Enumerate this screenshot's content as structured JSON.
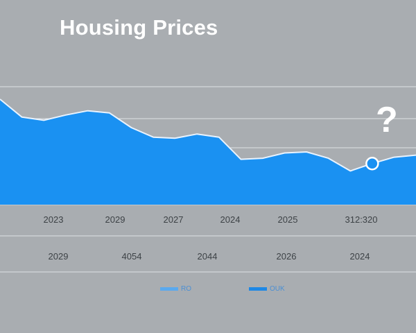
{
  "chart_data": {
    "type": "area",
    "title": "Housing Prices",
    "annotation": "?",
    "x_tick_labels": [
      "2023",
      "2029",
      "2027",
      "2024",
      "2025",
      "312:320"
    ],
    "secondary_x_labels": [
      "2029",
      "4054",
      "2044",
      "2026",
      "2024"
    ],
    "series": [
      {
        "name": "RO",
        "color": "#5aa9ee",
        "values": [
          100,
          83,
          80,
          85,
          89,
          87,
          73,
          64,
          63,
          67,
          64,
          43,
          44,
          49,
          50,
          44,
          32,
          39,
          45,
          47
        ]
      }
    ],
    "legend": [
      {
        "label": "RO",
        "color": "#5aa9ee"
      },
      {
        "label": "OUK",
        "color": "#1e88e5"
      }
    ],
    "ylim": [
      0,
      100
    ],
    "grid": true,
    "highlighted_point_index": 17,
    "colors": {
      "background": "#a9adb1",
      "area_fill": "#1a91f2",
      "line": "#e8f3ff",
      "grid": "#dfe2e5"
    }
  }
}
